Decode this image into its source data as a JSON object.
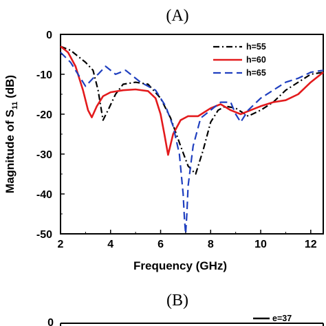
{
  "panel_a_label": "(A)",
  "panel_b_label": "(B)",
  "panel_b_legend": "e=37",
  "chart_data": {
    "type": "line",
    "title": "(A)",
    "xlabel": "Frequency (GHz)",
    "ylabel_main": "Magnitude of S",
    "ylabel_sub": "11",
    "ylabel_unit": " (dB)",
    "xlim": [
      2,
      12.5
    ],
    "ylim": [
      -50,
      0
    ],
    "xticks": [
      2,
      4,
      6,
      8,
      10,
      12
    ],
    "yticks": [
      0,
      -10,
      -20,
      -30,
      -40,
      -50
    ],
    "xtick_labels": [
      "2",
      "4",
      "6",
      "8",
      "10",
      "12"
    ],
    "ytick_labels": [
      "0",
      "-10",
      "-20",
      "-30",
      "-40",
      "-50"
    ],
    "grid": false,
    "legend_position": "top-right",
    "series": [
      {
        "name": "h=55",
        "color": "#000000",
        "dash": "dashdot",
        "x": [
          2.0,
          2.4,
          2.8,
          3.0,
          3.3,
          3.5,
          3.7,
          3.9,
          4.2,
          4.5,
          5.0,
          5.5,
          6.0,
          6.4,
          6.8,
          7.1,
          7.4,
          7.7,
          8.0,
          8.3,
          8.6,
          9.0,
          9.5,
          10.0,
          10.5,
          11.0,
          11.5,
          12.0,
          12.5
        ],
        "y": [
          -3,
          -4,
          -6,
          -7,
          -9,
          -14,
          -21.5,
          -19,
          -15,
          -12.5,
          -12,
          -12.5,
          -16,
          -21,
          -28,
          -33,
          -35,
          -29,
          -22,
          -19,
          -18,
          -18.5,
          -20.5,
          -19,
          -17,
          -14,
          -12,
          -10,
          -9.5
        ]
      },
      {
        "name": "h=60",
        "color": "#e31a1c",
        "dash": "solid",
        "x": [
          2.0,
          2.3,
          2.6,
          2.9,
          3.1,
          3.25,
          3.45,
          3.7,
          4.0,
          4.5,
          5.0,
          5.5,
          5.8,
          6.0,
          6.15,
          6.3,
          6.5,
          6.8,
          7.1,
          7.5,
          8.0,
          8.4,
          8.8,
          9.2,
          9.6,
          10.0,
          10.5,
          11.0,
          11.5,
          12.0,
          12.5
        ],
        "y": [
          -3,
          -4.5,
          -8,
          -14,
          -19,
          -20.8,
          -18,
          -15.5,
          -14.5,
          -14,
          -13.8,
          -14.2,
          -16,
          -20,
          -25,
          -30.2,
          -25,
          -21.5,
          -20.5,
          -20.5,
          -18.5,
          -17.5,
          -19,
          -20,
          -19,
          -18,
          -17,
          -16.5,
          -15,
          -12,
          -9.5
        ]
      },
      {
        "name": "h=65",
        "color": "#1f3fbf",
        "dash": "dashed",
        "x": [
          2.0,
          2.4,
          2.8,
          3.0,
          3.3,
          3.5,
          3.8,
          4.2,
          4.6,
          5.2,
          5.8,
          6.2,
          6.5,
          6.75,
          6.9,
          6.95,
          7.0,
          7.05,
          7.1,
          7.3,
          7.6,
          8.0,
          8.4,
          8.8,
          9.0,
          9.2,
          9.5,
          10.0,
          10.5,
          11.0,
          11.5,
          12.0,
          12.5
        ],
        "y": [
          -4.5,
          -7,
          -11,
          -13,
          -11,
          -10,
          -8,
          -10,
          -9,
          -12,
          -14,
          -18,
          -23,
          -30,
          -40,
          -46,
          -50,
          -45,
          -38,
          -28,
          -21,
          -19,
          -17,
          -17,
          -20,
          -22,
          -19,
          -16,
          -14,
          -12,
          -11,
          -9.5,
          -9
        ]
      }
    ]
  }
}
